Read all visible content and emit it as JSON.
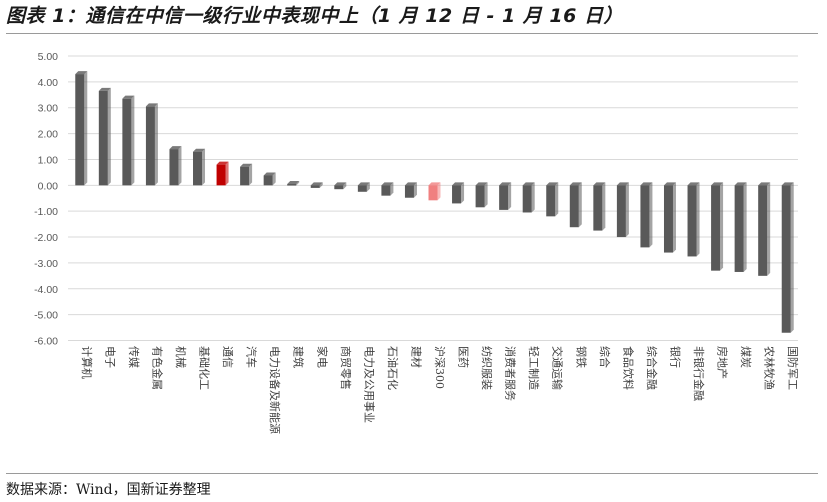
{
  "page": {
    "title": "图表 1：通信在中信一级行业中表现中上（1 月 12 日 - 1 月 16 日）"
  },
  "source": {
    "text": "数据来源：Wind，国新证券整理"
  },
  "colors": {
    "bar_default": "#595959",
    "bar_highlight": "#c00000",
    "bar_index": "#f08080",
    "grid": "#d9d9d9",
    "text": "#595959"
  },
  "chart_data": {
    "type": "bar",
    "title": "",
    "xlabel": "",
    "ylabel": "",
    "ylim": [
      -6,
      5
    ],
    "yticks": [
      "5.00",
      "4.00",
      "3.00",
      "2.00",
      "1.00",
      "0.00",
      "-1.00",
      "-2.00",
      "-3.00",
      "-4.00",
      "-5.00",
      "-6.00"
    ],
    "grid": true,
    "highlight": "通信",
    "index_category": "沪深300",
    "categories": [
      "计算机",
      "电子",
      "传媒",
      "有色金属",
      "机械",
      "基础化工",
      "通信",
      "汽车",
      "电力设备及新能源",
      "建筑",
      "家电",
      "商贸零售",
      "电力及公用事业",
      "石油石化",
      "建材",
      "沪深300",
      "医药",
      "纺织服装",
      "消费者服务",
      "轻工制造",
      "交通运输",
      "钢铁",
      "综合",
      "食品饮料",
      "综合金融",
      "银行",
      "非银行金融",
      "房地产",
      "煤炭",
      "农林牧渔",
      "国防军工"
    ],
    "values": [
      4.3,
      3.65,
      3.35,
      3.05,
      1.4,
      1.3,
      0.8,
      0.72,
      0.38,
      0.05,
      -0.1,
      -0.15,
      -0.25,
      -0.4,
      -0.48,
      -0.58,
      -0.7,
      -0.85,
      -0.95,
      -1.05,
      -1.2,
      -1.62,
      -1.75,
      -2.0,
      -2.4,
      -2.6,
      -2.75,
      -3.3,
      -3.35,
      -3.5,
      -5.7
    ]
  }
}
